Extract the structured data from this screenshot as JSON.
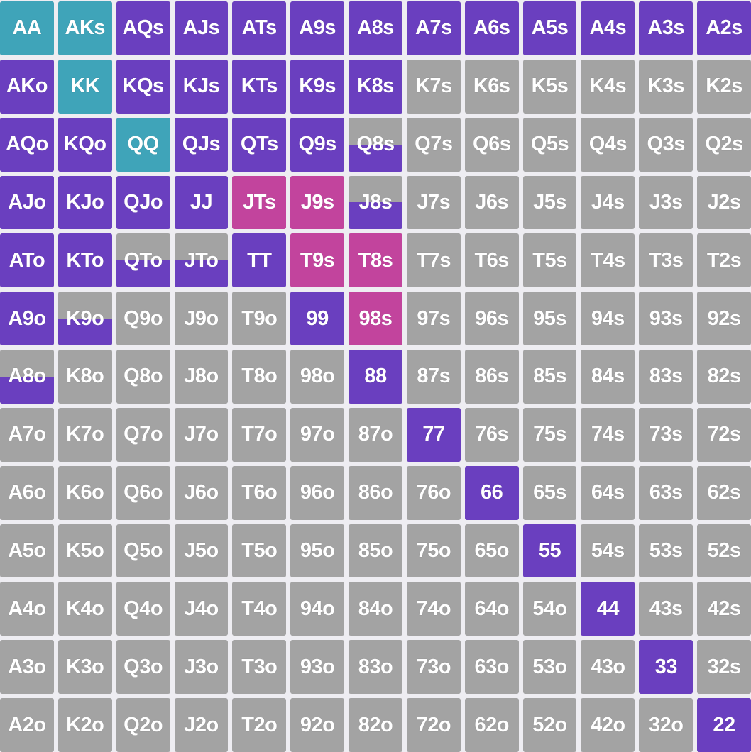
{
  "colors": {
    "fold": "#a3a3a3",
    "raise": "#6a3fbf",
    "premium": "#3fa4b9",
    "call": "#c2449d"
  },
  "grid": {
    "rows": [
      [
        [
          "AA",
          "premium",
          1
        ],
        [
          "AKs",
          "premium",
          1
        ],
        [
          "AQs",
          "raise",
          1
        ],
        [
          "AJs",
          "raise",
          1
        ],
        [
          "ATs",
          "raise",
          1
        ],
        [
          "A9s",
          "raise",
          1
        ],
        [
          "A8s",
          "raise",
          1
        ],
        [
          "A7s",
          "raise",
          1
        ],
        [
          "A6s",
          "raise",
          1
        ],
        [
          "A5s",
          "raise",
          1
        ],
        [
          "A4s",
          "raise",
          1
        ],
        [
          "A3s",
          "raise",
          1
        ],
        [
          "A2s",
          "raise",
          1
        ]
      ],
      [
        [
          "AKo",
          "raise",
          1
        ],
        [
          "KK",
          "premium",
          1
        ],
        [
          "KQs",
          "raise",
          1
        ],
        [
          "KJs",
          "raise",
          1
        ],
        [
          "KTs",
          "raise",
          1
        ],
        [
          "K9s",
          "raise",
          1
        ],
        [
          "K8s",
          "raise",
          1
        ],
        [
          "K7s",
          "fold",
          0
        ],
        [
          "K6s",
          "fold",
          0
        ],
        [
          "K5s",
          "fold",
          0
        ],
        [
          "K4s",
          "fold",
          0
        ],
        [
          "K3s",
          "fold",
          0
        ],
        [
          "K2s",
          "fold",
          0
        ]
      ],
      [
        [
          "AQo",
          "raise",
          1
        ],
        [
          "KQo",
          "raise",
          1
        ],
        [
          "QQ",
          "premium",
          1
        ],
        [
          "QJs",
          "raise",
          1
        ],
        [
          "QTs",
          "raise",
          1
        ],
        [
          "Q9s",
          "raise",
          1
        ],
        [
          "Q8s",
          "raise",
          0.5
        ],
        [
          "Q7s",
          "fold",
          0
        ],
        [
          "Q6s",
          "fold",
          0
        ],
        [
          "Q5s",
          "fold",
          0
        ],
        [
          "Q4s",
          "fold",
          0
        ],
        [
          "Q3s",
          "fold",
          0
        ],
        [
          "Q2s",
          "fold",
          0
        ]
      ],
      [
        [
          "AJo",
          "raise",
          1
        ],
        [
          "KJo",
          "raise",
          1
        ],
        [
          "QJo",
          "raise",
          1
        ],
        [
          "JJ",
          "raise",
          1
        ],
        [
          "JTs",
          "call",
          1
        ],
        [
          "J9s",
          "call",
          1
        ],
        [
          "J8s",
          "raise",
          0.5
        ],
        [
          "J7s",
          "fold",
          0
        ],
        [
          "J6s",
          "fold",
          0
        ],
        [
          "J5s",
          "fold",
          0
        ],
        [
          "J4s",
          "fold",
          0
        ],
        [
          "J3s",
          "fold",
          0
        ],
        [
          "J2s",
          "fold",
          0
        ]
      ],
      [
        [
          "ATo",
          "raise",
          1
        ],
        [
          "KTo",
          "raise",
          1
        ],
        [
          "QTo",
          "raise",
          0.5
        ],
        [
          "JTo",
          "raise",
          0.5
        ],
        [
          "TT",
          "raise",
          1
        ],
        [
          "T9s",
          "call",
          1
        ],
        [
          "T8s",
          "call",
          1
        ],
        [
          "T7s",
          "fold",
          0
        ],
        [
          "T6s",
          "fold",
          0
        ],
        [
          "T5s",
          "fold",
          0
        ],
        [
          "T4s",
          "fold",
          0
        ],
        [
          "T3s",
          "fold",
          0
        ],
        [
          "T2s",
          "fold",
          0
        ]
      ],
      [
        [
          "A9o",
          "raise",
          1
        ],
        [
          "K9o",
          "raise",
          0.5
        ],
        [
          "Q9o",
          "fold",
          0
        ],
        [
          "J9o",
          "fold",
          0
        ],
        [
          "T9o",
          "fold",
          0
        ],
        [
          "99",
          "raise",
          1
        ],
        [
          "98s",
          "call",
          1
        ],
        [
          "97s",
          "fold",
          0
        ],
        [
          "96s",
          "fold",
          0
        ],
        [
          "95s",
          "fold",
          0
        ],
        [
          "94s",
          "fold",
          0
        ],
        [
          "93s",
          "fold",
          0
        ],
        [
          "92s",
          "fold",
          0
        ]
      ],
      [
        [
          "A8o",
          "raise",
          0.5
        ],
        [
          "K8o",
          "fold",
          0
        ],
        [
          "Q8o",
          "fold",
          0
        ],
        [
          "J8o",
          "fold",
          0
        ],
        [
          "T8o",
          "fold",
          0
        ],
        [
          "98o",
          "fold",
          0
        ],
        [
          "88",
          "raise",
          1
        ],
        [
          "87s",
          "fold",
          0
        ],
        [
          "86s",
          "fold",
          0
        ],
        [
          "85s",
          "fold",
          0
        ],
        [
          "84s",
          "fold",
          0
        ],
        [
          "83s",
          "fold",
          0
        ],
        [
          "82s",
          "fold",
          0
        ]
      ],
      [
        [
          "A7o",
          "fold",
          0
        ],
        [
          "K7o",
          "fold",
          0
        ],
        [
          "Q7o",
          "fold",
          0
        ],
        [
          "J7o",
          "fold",
          0
        ],
        [
          "T7o",
          "fold",
          0
        ],
        [
          "97o",
          "fold",
          0
        ],
        [
          "87o",
          "fold",
          0
        ],
        [
          "77",
          "raise",
          1
        ],
        [
          "76s",
          "fold",
          0
        ],
        [
          "75s",
          "fold",
          0
        ],
        [
          "74s",
          "fold",
          0
        ],
        [
          "73s",
          "fold",
          0
        ],
        [
          "72s",
          "fold",
          0
        ]
      ],
      [
        [
          "A6o",
          "fold",
          0
        ],
        [
          "K6o",
          "fold",
          0
        ],
        [
          "Q6o",
          "fold",
          0
        ],
        [
          "J6o",
          "fold",
          0
        ],
        [
          "T6o",
          "fold",
          0
        ],
        [
          "96o",
          "fold",
          0
        ],
        [
          "86o",
          "fold",
          0
        ],
        [
          "76o",
          "fold",
          0
        ],
        [
          "66",
          "raise",
          1
        ],
        [
          "65s",
          "fold",
          0
        ],
        [
          "64s",
          "fold",
          0
        ],
        [
          "63s",
          "fold",
          0
        ],
        [
          "62s",
          "fold",
          0
        ]
      ],
      [
        [
          "A5o",
          "fold",
          0
        ],
        [
          "K5o",
          "fold",
          0
        ],
        [
          "Q5o",
          "fold",
          0
        ],
        [
          "J5o",
          "fold",
          0
        ],
        [
          "T5o",
          "fold",
          0
        ],
        [
          "95o",
          "fold",
          0
        ],
        [
          "85o",
          "fold",
          0
        ],
        [
          "75o",
          "fold",
          0
        ],
        [
          "65o",
          "fold",
          0
        ],
        [
          "55",
          "raise",
          1
        ],
        [
          "54s",
          "fold",
          0
        ],
        [
          "53s",
          "fold",
          0
        ],
        [
          "52s",
          "fold",
          0
        ]
      ],
      [
        [
          "A4o",
          "fold",
          0
        ],
        [
          "K4o",
          "fold",
          0
        ],
        [
          "Q4o",
          "fold",
          0
        ],
        [
          "J4o",
          "fold",
          0
        ],
        [
          "T4o",
          "fold",
          0
        ],
        [
          "94o",
          "fold",
          0
        ],
        [
          "84o",
          "fold",
          0
        ],
        [
          "74o",
          "fold",
          0
        ],
        [
          "64o",
          "fold",
          0
        ],
        [
          "54o",
          "fold",
          0
        ],
        [
          "44",
          "raise",
          1
        ],
        [
          "43s",
          "fold",
          0
        ],
        [
          "42s",
          "fold",
          0
        ]
      ],
      [
        [
          "A3o",
          "fold",
          0
        ],
        [
          "K3o",
          "fold",
          0
        ],
        [
          "Q3o",
          "fold",
          0
        ],
        [
          "J3o",
          "fold",
          0
        ],
        [
          "T3o",
          "fold",
          0
        ],
        [
          "93o",
          "fold",
          0
        ],
        [
          "83o",
          "fold",
          0
        ],
        [
          "73o",
          "fold",
          0
        ],
        [
          "63o",
          "fold",
          0
        ],
        [
          "53o",
          "fold",
          0
        ],
        [
          "43o",
          "fold",
          0
        ],
        [
          "33",
          "raise",
          1
        ],
        [
          "32s",
          "fold",
          0
        ]
      ],
      [
        [
          "A2o",
          "fold",
          0
        ],
        [
          "K2o",
          "fold",
          0
        ],
        [
          "Q2o",
          "fold",
          0
        ],
        [
          "J2o",
          "fold",
          0
        ],
        [
          "T2o",
          "fold",
          0
        ],
        [
          "92o",
          "fold",
          0
        ],
        [
          "82o",
          "fold",
          0
        ],
        [
          "72o",
          "fold",
          0
        ],
        [
          "62o",
          "fold",
          0
        ],
        [
          "52o",
          "fold",
          0
        ],
        [
          "42o",
          "fold",
          0
        ],
        [
          "32o",
          "fold",
          0
        ],
        [
          "22",
          "raise",
          1
        ]
      ]
    ]
  }
}
